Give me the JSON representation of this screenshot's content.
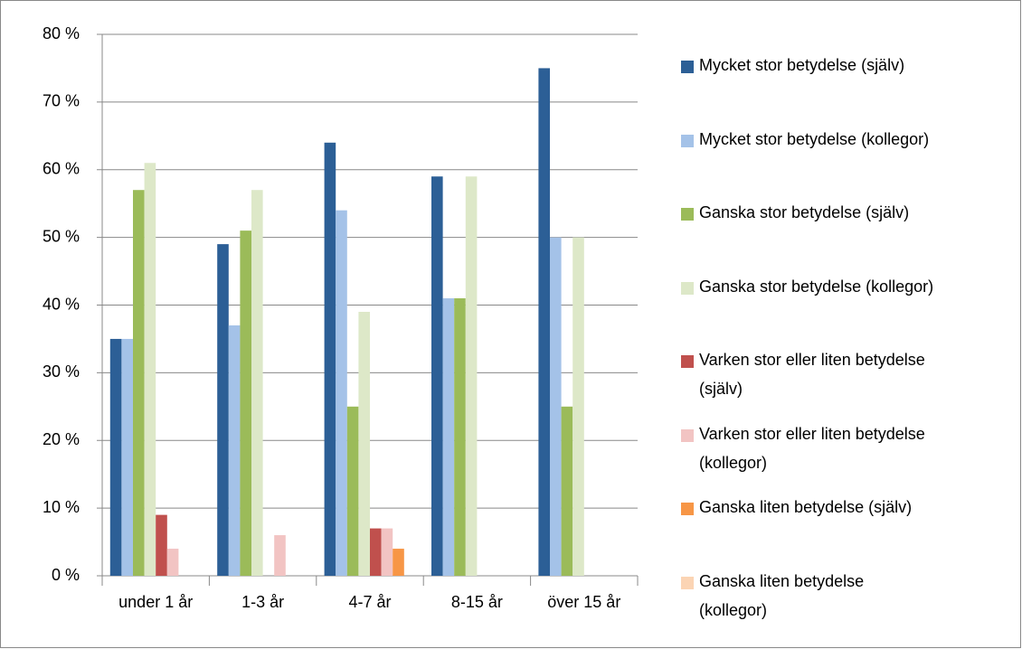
{
  "chart_data": {
    "type": "bar",
    "categories": [
      "under 1 år",
      "1-3 år",
      "4-7 år",
      "8-15 år",
      "över 15 år"
    ],
    "series": [
      {
        "name": "Mycket stor betydelse (själv)",
        "color": "#2c5f96",
        "values": [
          35,
          49,
          64,
          59,
          75
        ]
      },
      {
        "name": "Mycket stor betydelse (kollegor)",
        "color": "#a4c2e8",
        "values": [
          35,
          37,
          54,
          41,
          50
        ]
      },
      {
        "name": "Ganska stor betydelse (själv)",
        "color": "#9bbb59",
        "values": [
          57,
          51,
          25,
          41,
          25
        ]
      },
      {
        "name": "Ganska stor betydelse (kollegor)",
        "color": "#dde8c8",
        "values": [
          61,
          57,
          39,
          59,
          50
        ]
      },
      {
        "name": "Varken stor eller liten betydelse (själv)",
        "color": "#c0504d",
        "values": [
          9,
          0,
          7,
          0,
          0
        ]
      },
      {
        "name": "Varken stor eller liten betydelse (kollegor)",
        "color": "#f2c4c3",
        "values": [
          4,
          6,
          7,
          0,
          0
        ]
      },
      {
        "name": "Ganska liten betydelse (själv)",
        "color": "#f79646",
        "values": [
          0,
          0,
          4,
          0,
          0
        ]
      },
      {
        "name": "Ganska liten betydelse (kollegor)",
        "color": "#fbd4b4",
        "values": [
          0,
          0,
          0,
          0,
          0
        ]
      }
    ],
    "ylim": [
      0,
      80
    ],
    "yticks": [
      {
        "value": 0,
        "label": "0 %"
      },
      {
        "value": 10,
        "label": "10 %"
      },
      {
        "value": 20,
        "label": "20 %"
      },
      {
        "value": 30,
        "label": "30 %"
      },
      {
        "value": 40,
        "label": "40 %"
      },
      {
        "value": 50,
        "label": "50 %"
      },
      {
        "value": 60,
        "label": "60 %"
      },
      {
        "value": 70,
        "label": "70 %"
      },
      {
        "value": 80,
        "label": "80 %"
      }
    ],
    "grid": true,
    "legend": "right"
  }
}
